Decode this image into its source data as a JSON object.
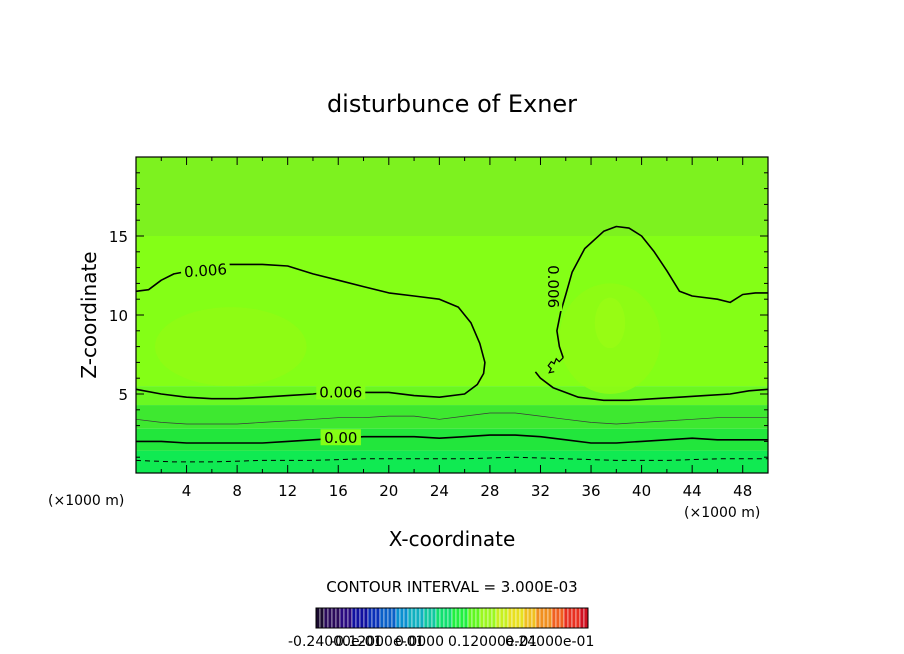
{
  "chart_data": {
    "type": "contour",
    "title": "disturbunce of Exner",
    "xlabel": "X-coordinate",
    "ylabel": "Z-coordinate",
    "x_unit": "(×1000 m)",
    "y_unit": "(×1000 m)",
    "xlim": [
      0,
      50
    ],
    "ylim": [
      0,
      20
    ],
    "x_ticks": [
      4,
      8,
      12,
      16,
      20,
      24,
      28,
      32,
      36,
      40,
      44,
      48
    ],
    "y_ticks": [
      5,
      10,
      15
    ],
    "contour_interval_text": "CONTOUR INTERVAL = 3.000E-03",
    "contour_labels": [
      {
        "text": "0.006",
        "x": 5.5,
        "y": 12.8,
        "rotate": -4
      },
      {
        "text": "0.006",
        "x": 16.2,
        "y": 5.1,
        "rotate": 0
      },
      {
        "text": "0.00",
        "x": 16.2,
        "y": 2.2,
        "rotate": 0
      },
      {
        "text": "0.006",
        "x": 33.0,
        "y": 11.8,
        "rotate": 90
      }
    ],
    "contour_lines": [
      {
        "level": "0.006 upper-left",
        "style": "solid-thick",
        "points": [
          [
            0,
            11.5
          ],
          [
            1,
            11.6
          ],
          [
            2,
            12.2
          ],
          [
            3,
            12.6
          ],
          [
            5,
            12.9
          ],
          [
            7,
            13.2
          ],
          [
            10,
            13.2
          ],
          [
            12,
            13.1
          ],
          [
            14,
            12.6
          ],
          [
            16,
            12.2
          ],
          [
            18,
            11.8
          ],
          [
            20,
            11.4
          ],
          [
            22,
            11.2
          ],
          [
            24,
            11.0
          ],
          [
            25.5,
            10.5
          ],
          [
            26.5,
            9.5
          ],
          [
            27.2,
            8.2
          ],
          [
            27.6,
            7.0
          ],
          [
            27.5,
            6.3
          ],
          [
            27,
            5.6
          ],
          [
            26,
            5.0
          ],
          [
            24,
            4.8
          ],
          [
            22,
            4.9
          ],
          [
            20,
            5.1
          ],
          [
            18,
            5.1
          ],
          [
            16,
            5.2
          ],
          [
            14,
            5.0
          ],
          [
            12,
            4.9
          ],
          [
            10,
            4.8
          ],
          [
            8,
            4.7
          ],
          [
            6,
            4.7
          ],
          [
            4,
            4.8
          ],
          [
            2,
            5.0
          ],
          [
            0,
            5.3
          ]
        ]
      },
      {
        "level": "0.006 right dome",
        "style": "solid-thick",
        "points": [
          [
            33.8,
            7.3
          ],
          [
            33.5,
            8.0
          ],
          [
            33.3,
            9.0
          ],
          [
            33.6,
            10.2
          ],
          [
            34,
            11.3
          ],
          [
            34.5,
            12.7
          ],
          [
            35.5,
            14.2
          ],
          [
            37,
            15.3
          ],
          [
            38,
            15.6
          ],
          [
            39,
            15.5
          ],
          [
            40,
            15.0
          ],
          [
            41,
            14.0
          ],
          [
            42,
            12.8
          ],
          [
            43,
            11.5
          ],
          [
            44,
            11.2
          ],
          [
            46,
            11.0
          ],
          [
            47,
            10.8
          ],
          [
            48,
            11.3
          ],
          [
            49,
            11.4
          ],
          [
            50,
            11.4
          ]
        ]
      },
      {
        "level": "0.006 right lower",
        "style": "solid-thick",
        "points": [
          [
            31.6,
            6.4
          ],
          [
            32,
            6.0
          ],
          [
            33,
            5.4
          ],
          [
            35,
            4.8
          ],
          [
            37,
            4.6
          ],
          [
            39,
            4.6
          ],
          [
            41,
            4.7
          ],
          [
            43,
            4.8
          ],
          [
            45,
            4.9
          ],
          [
            47,
            5.0
          ],
          [
            48.5,
            5.2
          ],
          [
            50,
            5.3
          ]
        ]
      },
      {
        "level": "0.003",
        "style": "solid-thin",
        "points": [
          [
            0,
            3.4
          ],
          [
            2,
            3.2
          ],
          [
            4,
            3.1
          ],
          [
            6,
            3.1
          ],
          [
            8,
            3.1
          ],
          [
            10,
            3.2
          ],
          [
            12,
            3.3
          ],
          [
            14,
            3.4
          ],
          [
            16,
            3.5
          ],
          [
            18,
            3.5
          ],
          [
            20,
            3.6
          ],
          [
            22,
            3.6
          ],
          [
            24,
            3.4
          ],
          [
            26,
            3.6
          ],
          [
            28,
            3.8
          ],
          [
            30,
            3.8
          ],
          [
            32,
            3.6
          ],
          [
            34,
            3.4
          ],
          [
            36,
            3.2
          ],
          [
            38,
            3.1
          ],
          [
            40,
            3.2
          ],
          [
            42,
            3.3
          ],
          [
            44,
            3.4
          ],
          [
            46,
            3.5
          ],
          [
            48,
            3.5
          ],
          [
            50,
            3.5
          ]
        ]
      },
      {
        "level": "0.00",
        "style": "solid-thick",
        "points": [
          [
            0,
            2.0
          ],
          [
            2,
            2.0
          ],
          [
            4,
            1.9
          ],
          [
            6,
            1.9
          ],
          [
            8,
            1.9
          ],
          [
            10,
            1.9
          ],
          [
            12,
            2.0
          ],
          [
            14,
            2.1
          ],
          [
            16,
            2.2
          ],
          [
            18,
            2.3
          ],
          [
            20,
            2.3
          ],
          [
            22,
            2.3
          ],
          [
            24,
            2.2
          ],
          [
            26,
            2.3
          ],
          [
            28,
            2.4
          ],
          [
            30,
            2.4
          ],
          [
            32,
            2.3
          ],
          [
            34,
            2.1
          ],
          [
            36,
            1.9
          ],
          [
            38,
            1.9
          ],
          [
            40,
            2.0
          ],
          [
            42,
            2.1
          ],
          [
            44,
            2.2
          ],
          [
            46,
            2.1
          ],
          [
            48,
            2.1
          ],
          [
            50,
            2.1
          ]
        ]
      },
      {
        "level": "-0.003",
        "style": "dashed",
        "points": [
          [
            0,
            0.8
          ],
          [
            3,
            0.7
          ],
          [
            6,
            0.7
          ],
          [
            10,
            0.8
          ],
          [
            14,
            0.8
          ],
          [
            18,
            0.9
          ],
          [
            22,
            0.9
          ],
          [
            26,
            0.9
          ],
          [
            30,
            1.0
          ],
          [
            34,
            0.9
          ],
          [
            38,
            0.8
          ],
          [
            42,
            0.8
          ],
          [
            46,
            0.9
          ],
          [
            50,
            0.9
          ]
        ]
      }
    ],
    "fill_bands": [
      {
        "color": "#7df21f",
        "y_from": 15.0,
        "y_to": 20.0
      },
      {
        "color": "#84ff16",
        "y_from": 5.5,
        "y_to": 15.0
      },
      {
        "color": "#6af822",
        "y_from": 4.3,
        "y_to": 5.5
      },
      {
        "color": "#3ee830",
        "y_from": 2.8,
        "y_to": 4.3
      },
      {
        "color": "#22e63c",
        "y_from": 1.4,
        "y_to": 2.8
      },
      {
        "color": "#10ea52",
        "y_from": 0.0,
        "y_to": 1.4
      }
    ],
    "highlight_blobs": [
      {
        "color": "#8ffb14",
        "cx": 7.5,
        "cy": 8.0,
        "rx": 6.0,
        "ry": 2.5
      },
      {
        "color": "#8ffb14",
        "cx": 37.5,
        "cy": 8.5,
        "rx": 4.0,
        "ry": 3.5
      },
      {
        "color": "#99fc14",
        "cx": 37.5,
        "cy": 9.5,
        "rx": 1.2,
        "ry": 1.6
      }
    ],
    "colorbar": {
      "labels_text": "-0.24000e-01",
      "labels_overlap": [
        "-0.12000e-01",
        "0.0000",
        "0.12000e-01",
        "0.24000e-01"
      ],
      "colors": [
        "#1a0a30",
        "#2a0a5a",
        "#2a0a80",
        "#1010a0",
        "#0a30b8",
        "#0a60c8",
        "#0a90d0",
        "#10b0c0",
        "#10c8a0",
        "#10e070",
        "#20f040",
        "#60f820",
        "#9cf820",
        "#c8f020",
        "#e8e020",
        "#f0c020",
        "#f09020",
        "#f06020",
        "#e83020",
        "#d01020"
      ]
    }
  }
}
